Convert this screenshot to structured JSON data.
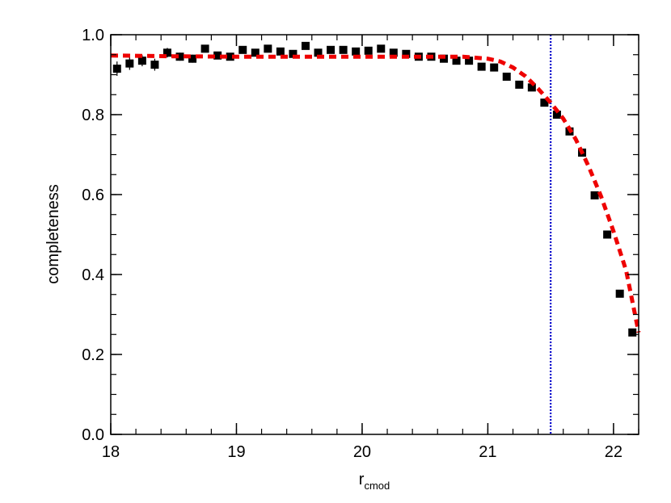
{
  "chart_data": {
    "type": "scatter",
    "xlabel": "r",
    "xlabel_subscript": "cmod",
    "ylabel": "completeness",
    "xlim": [
      18,
      22.2
    ],
    "ylim": [
      0,
      1
    ],
    "x_ticks": [
      "18",
      "19",
      "20",
      "21",
      "22"
    ],
    "y_ticks": [
      "0.0",
      "0.2",
      "0.4",
      "0.6",
      "0.8",
      "1.0"
    ],
    "grid": false,
    "vline": {
      "x": 21.5,
      "color": "#0000cc",
      "style": "dotted"
    },
    "series": [
      {
        "kind": "points",
        "marker": "square",
        "color": "#000000",
        "x": [
          18.05,
          18.15,
          18.25,
          18.35,
          18.45,
          18.55,
          18.65,
          18.75,
          18.85,
          18.95,
          19.05,
          19.15,
          19.25,
          19.35,
          19.45,
          19.55,
          19.65,
          19.75,
          19.85,
          19.95,
          20.05,
          20.15,
          20.25,
          20.35,
          20.45,
          20.55,
          20.65,
          20.75,
          20.85,
          20.95,
          21.05,
          21.15,
          21.25,
          21.35,
          21.45,
          21.55,
          21.65,
          21.75,
          21.85,
          21.95,
          22.05,
          22.15
        ],
        "values": [
          0.915,
          0.928,
          0.935,
          0.925,
          0.955,
          0.945,
          0.94,
          0.965,
          0.948,
          0.945,
          0.962,
          0.955,
          0.965,
          0.958,
          0.952,
          0.972,
          0.955,
          0.962,
          0.962,
          0.958,
          0.96,
          0.965,
          0.955,
          0.952,
          0.945,
          0.945,
          0.94,
          0.935,
          0.935,
          0.92,
          0.918,
          0.895,
          0.875,
          0.868,
          0.83,
          0.8,
          0.758,
          0.705,
          0.598,
          0.5,
          0.352,
          0.255
        ],
        "errors": [
          0.018,
          0.016,
          0.014,
          0.015,
          0.012,
          0.01,
          0.01,
          0.009,
          0.009,
          0.009,
          0.008,
          0.008,
          0.008,
          0.008,
          0.008,
          0.008,
          0.008,
          0.008,
          0.008,
          0.008,
          0.008,
          0.008,
          0.008,
          0.008,
          0.008,
          0.008,
          0.008,
          0.008,
          0.008,
          0.008,
          0.008,
          0.008,
          0.008,
          0.008,
          0.008,
          0.008,
          0.008,
          0.008,
          0.008,
          0.008,
          0.008,
          0.008
        ]
      },
      {
        "kind": "fit-curve",
        "color": "#ee0000",
        "style": "dashed",
        "x": [
          18.0,
          18.5,
          19.0,
          19.5,
          20.0,
          20.5,
          20.8,
          21.0,
          21.1,
          21.2,
          21.3,
          21.4,
          21.5,
          21.6,
          21.7,
          21.8,
          21.9,
          22.0,
          22.1,
          22.2
        ],
        "values": [
          0.948,
          0.946,
          0.945,
          0.945,
          0.945,
          0.945,
          0.945,
          0.94,
          0.933,
          0.918,
          0.896,
          0.865,
          0.83,
          0.79,
          0.738,
          0.672,
          0.596,
          0.508,
          0.41,
          0.255
        ]
      }
    ]
  }
}
